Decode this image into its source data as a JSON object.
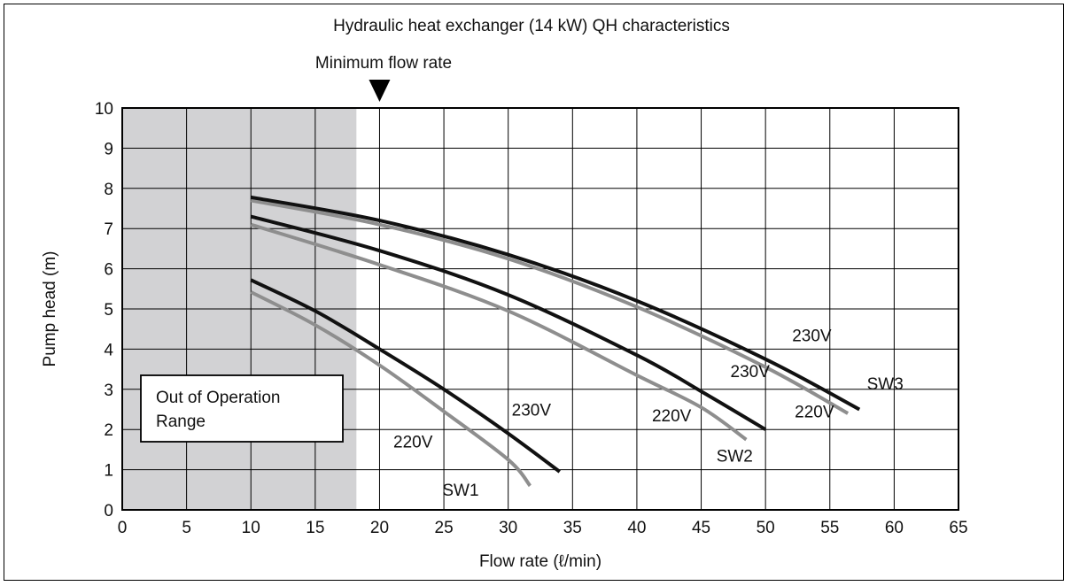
{
  "colors": {
    "shade": "#d2d2d4",
    "curve_230v": "#111111",
    "curve_220v": "#8e8e8e",
    "grid": "#000000"
  },
  "chart_data": {
    "type": "line",
    "title": "Hydraulic heat exchanger (14 kW) QH characteristics",
    "xlabel": "Flow rate (ℓ/min)",
    "ylabel": "Pump head (m)",
    "xlim": [
      0,
      65
    ],
    "ylim": [
      0,
      10
    ],
    "xticks": [
      "0",
      "5",
      "10",
      "15",
      "20",
      "25",
      "30",
      "35",
      "40",
      "45",
      "50",
      "55",
      "60",
      "65"
    ],
    "yticks": [
      "0",
      "1",
      "2",
      "3",
      "4",
      "5",
      "6",
      "7",
      "8",
      "9",
      "10"
    ],
    "grid": true,
    "out_of_operation": {
      "label_line1": "Out of Operation",
      "label_line2": "Range",
      "x_range": [
        0,
        18.2
      ]
    },
    "minimum_flow": {
      "label": "Minimum flow rate",
      "x": 20
    },
    "series": [
      {
        "voltage": "230V",
        "group": "SW1",
        "points": [
          [
            10,
            5.72
          ],
          [
            15,
            4.95
          ],
          [
            20,
            4.0
          ],
          [
            25,
            3.0
          ],
          [
            30,
            1.9
          ],
          [
            34,
            0.95
          ]
        ]
      },
      {
        "voltage": "220V",
        "group": "SW1",
        "points": [
          [
            10,
            5.42
          ],
          [
            15,
            4.6
          ],
          [
            20,
            3.6
          ],
          [
            25,
            2.45
          ],
          [
            30,
            1.25
          ],
          [
            31.7,
            0.6
          ]
        ]
      },
      {
        "voltage": "230V",
        "group": "SW2",
        "points": [
          [
            10,
            7.3
          ],
          [
            20,
            6.45
          ],
          [
            30,
            5.35
          ],
          [
            40,
            3.85
          ],
          [
            45,
            2.95
          ],
          [
            50,
            2.0
          ]
        ]
      },
      {
        "voltage": "220V",
        "group": "SW2",
        "points": [
          [
            10,
            7.1
          ],
          [
            20,
            6.1
          ],
          [
            30,
            4.95
          ],
          [
            40,
            3.35
          ],
          [
            45,
            2.55
          ],
          [
            48.5,
            1.75
          ]
        ]
      },
      {
        "voltage": "230V",
        "group": "SW3",
        "points": [
          [
            10,
            7.78
          ],
          [
            20,
            7.2
          ],
          [
            30,
            6.35
          ],
          [
            40,
            5.2
          ],
          [
            50,
            3.75
          ],
          [
            57.3,
            2.5
          ]
        ]
      },
      {
        "voltage": "220V",
        "group": "SW3",
        "points": [
          [
            10,
            7.7
          ],
          [
            20,
            7.1
          ],
          [
            30,
            6.25
          ],
          [
            40,
            5.05
          ],
          [
            50,
            3.55
          ],
          [
            56.4,
            2.4
          ]
        ]
      }
    ],
    "curve_labels": [
      {
        "text": "230V",
        "x": 31.8,
        "y": 2.35
      },
      {
        "text": "220V",
        "x": 22.6,
        "y": 1.55
      },
      {
        "text": "SW1",
        "x": 26.3,
        "y": 0.35
      },
      {
        "text": "230V",
        "x": 48.8,
        "y": 3.3
      },
      {
        "text": "220V",
        "x": 42.7,
        "y": 2.2
      },
      {
        "text": "SW2",
        "x": 47.6,
        "y": 1.2
      },
      {
        "text": "230V",
        "x": 53.6,
        "y": 4.2
      },
      {
        "text": "220V",
        "x": 53.8,
        "y": 2.3
      },
      {
        "text": "SW3",
        "x": 59.3,
        "y": 3.0
      }
    ]
  }
}
